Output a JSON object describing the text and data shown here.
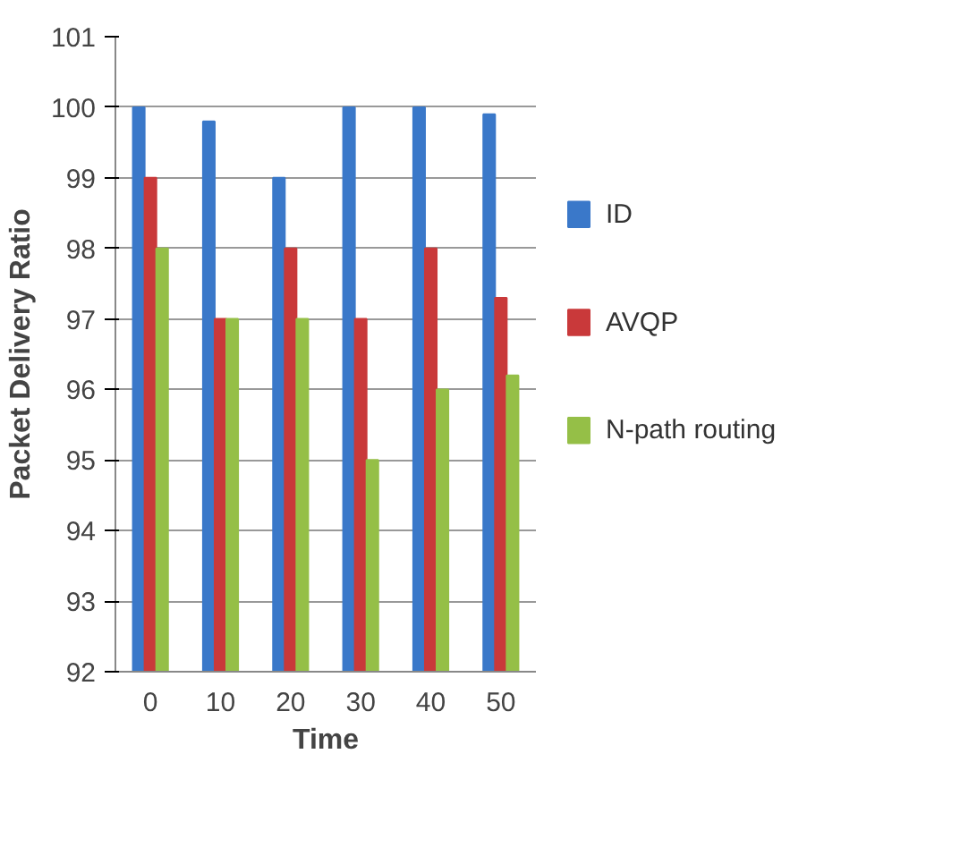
{
  "chart_data": {
    "type": "bar",
    "xlabel": "Time",
    "ylabel": "Packet Delivery Ratio",
    "categories": [
      "0",
      "10",
      "20",
      "30",
      "40",
      "50"
    ],
    "series": [
      {
        "name": "ID",
        "color": "#3a78c9",
        "values": [
          100,
          99.8,
          99,
          100,
          100,
          99.9
        ]
      },
      {
        "name": "AVQP",
        "color": "#c9393a",
        "values": [
          99,
          97,
          98,
          97,
          98,
          97.3
        ]
      },
      {
        "name": "N-path routing",
        "color": "#95bf47",
        "values": [
          98,
          97,
          97,
          95,
          96,
          96.2
        ]
      }
    ],
    "ylim": [
      92,
      101
    ],
    "yticks": [
      92,
      93,
      94,
      95,
      96,
      97,
      98,
      99,
      100,
      101
    ],
    "grid": "y",
    "legend": "right"
  }
}
